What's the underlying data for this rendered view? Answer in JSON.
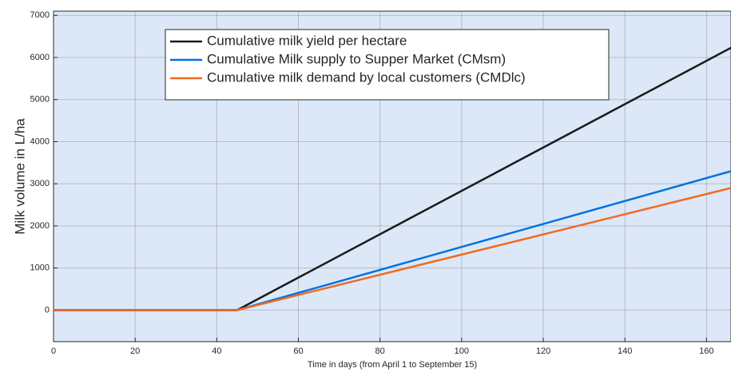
{
  "chart_data": {
    "type": "line",
    "x": [
      0,
      45,
      166
    ],
    "series": [
      {
        "name": "Cumulative milk yield  per hectare",
        "color": "#1a1a1a",
        "values": [
          0,
          0,
          6230
        ]
      },
      {
        "name": "Cumulative Milk supply to  Supper Market (CMsm)",
        "color": "#0072e0",
        "values": [
          0,
          0,
          3300
        ]
      },
      {
        "name": "Cumulative milk demand by local  customers (CMDlc)",
        "color": "#f26a21",
        "values": [
          0,
          0,
          2900
        ]
      }
    ],
    "xlabel": "Time in days (from April 1 to September 15)",
    "ylabel": "Milk volume in L/ha",
    "xlim": [
      0,
      166
    ],
    "ylim": [
      -750,
      7100
    ],
    "xticks": [
      0,
      20,
      40,
      60,
      80,
      100,
      120,
      140,
      160
    ],
    "yticks": [
      0,
      1000,
      2000,
      3000,
      4000,
      5000,
      6000,
      7000
    ],
    "grid": true,
    "legend": "north"
  }
}
